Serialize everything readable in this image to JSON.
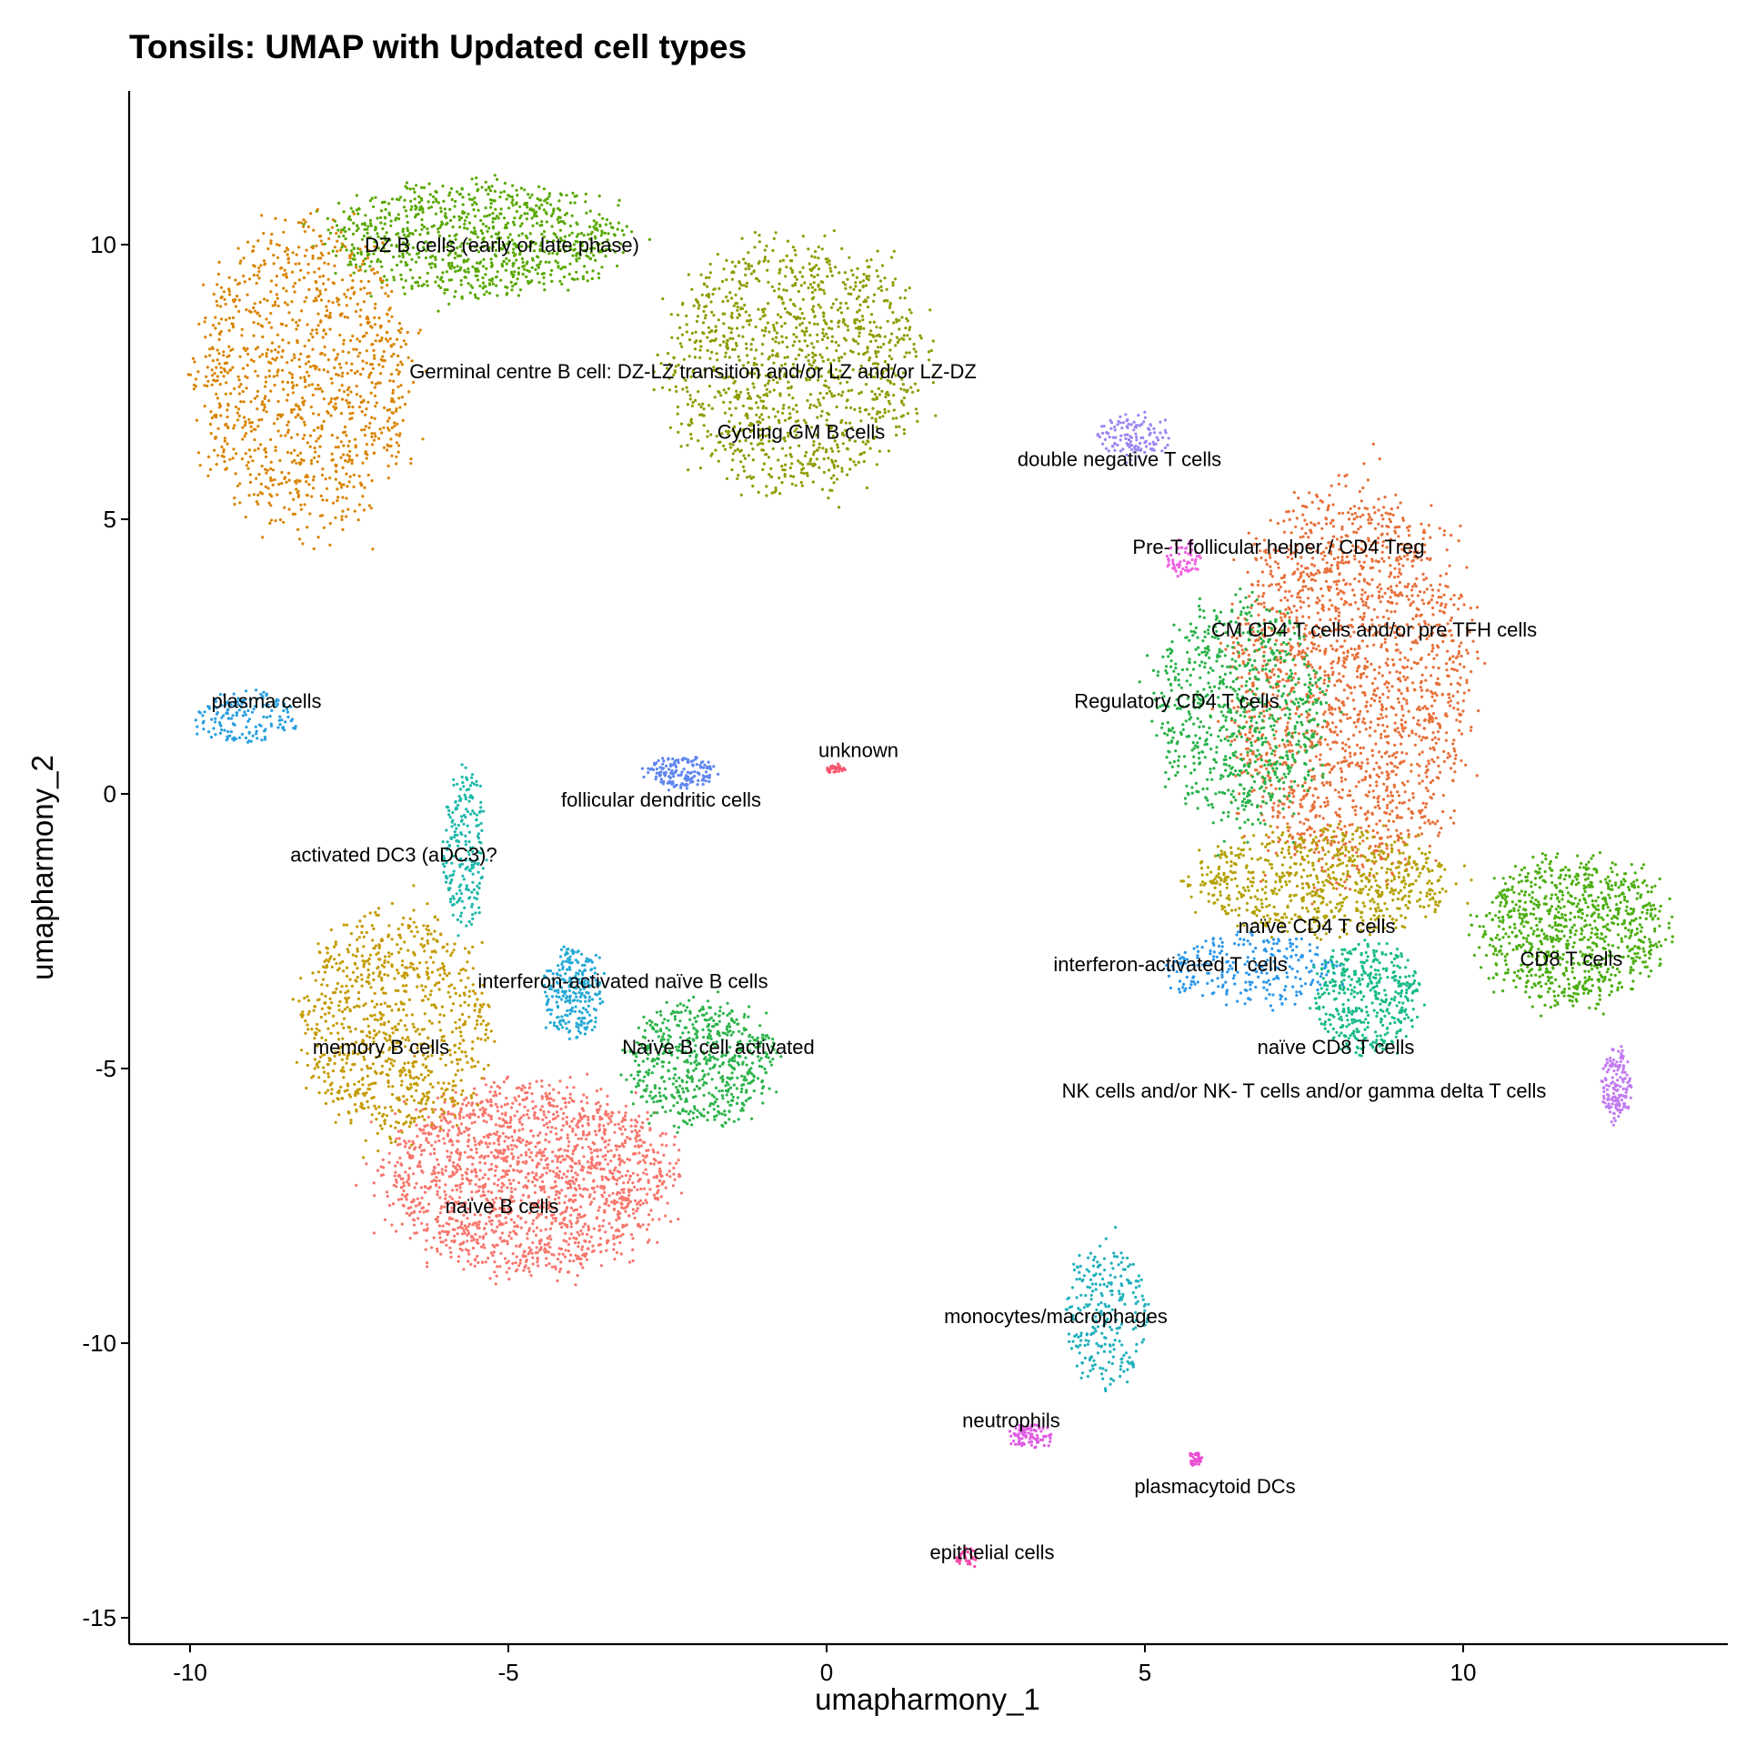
{
  "chart_data": {
    "type": "scatter",
    "title": "Tonsils: UMAP with Updated cell types",
    "xlabel": "umapharmony_1",
    "ylabel": "umapharmony_2",
    "xlim": [
      -11,
      14.3
    ],
    "ylim": [
      -15.4,
      12.8
    ],
    "x_ticks": [
      -10,
      -5,
      0,
      5,
      10
    ],
    "y_ticks": [
      10,
      5,
      0,
      -5,
      -10,
      -15
    ],
    "grid": false,
    "legend": "none",
    "clusters": [
      {
        "name": "naïve B cells",
        "color": "#F8766D",
        "cx": -4.7,
        "cy": -7.0,
        "rx": 2.4,
        "ry": 1.8,
        "n": 1800,
        "label_x": -5.1,
        "label_y": -7.5
      },
      {
        "name": "memory B cells",
        "color": "#C49A00",
        "cx": -6.8,
        "cy": -4.2,
        "rx": 1.6,
        "ry": 2.2,
        "n": 900,
        "label_x": -7.0,
        "label_y": -4.6
      },
      {
        "name": "Naïve B cell activated",
        "color": "#2CB34B",
        "cx": -2.0,
        "cy": -4.9,
        "rx": 1.2,
        "ry": 1.2,
        "n": 600,
        "label_x": -1.7,
        "label_y": -4.6
      },
      {
        "name": "interferon-activated naïve B cells",
        "color": "#24A9D6",
        "cx": -4.0,
        "cy": -3.6,
        "rx": 0.5,
        "ry": 0.9,
        "n": 250,
        "label_x": -3.2,
        "label_y": -3.4
      },
      {
        "name": "activated DC3 (aDC3)?",
        "color": "#1FB8AB",
        "cx": -5.7,
        "cy": -1.0,
        "rx": 0.35,
        "ry": 1.6,
        "n": 220,
        "label_x": -6.8,
        "label_y": -1.1
      },
      {
        "name": "plasma cells",
        "color": "#2A9FE0",
        "cx": -9.1,
        "cy": 1.4,
        "rx": 0.9,
        "ry": 0.5,
        "n": 160,
        "label_x": -8.8,
        "label_y": 1.7
      },
      {
        "name": "DZ B cells (early or late phase)",
        "color": "#58A800",
        "cx": -5.5,
        "cy": 10.1,
        "rx": 2.4,
        "ry": 1.1,
        "n": 900,
        "label_x": -5.1,
        "label_y": 10.0
      },
      {
        "name": "Germinal centre B cell: DZ-LZ transition and/or LZ and/or LZ-DZ",
        "color": "#D98400",
        "cx": -8.2,
        "cy": 7.6,
        "rx": 1.8,
        "ry": 2.9,
        "n": 1100,
        "label_x": -2.1,
        "label_y": 7.7
      },
      {
        "name": "Cycling GM B cells",
        "color": "#8E9C00",
        "cx": -0.5,
        "cy": 7.8,
        "rx": 2.2,
        "ry": 2.4,
        "n": 1200,
        "label_x": -0.4,
        "label_y": 6.6
      },
      {
        "name": "follicular dendritic cells",
        "color": "#5E86F0",
        "cx": -2.3,
        "cy": 0.4,
        "rx": 0.6,
        "ry": 0.3,
        "n": 160,
        "label_x": -2.6,
        "label_y": -0.1
      },
      {
        "name": "unknown",
        "color": "#F8566E",
        "cx": 0.15,
        "cy": 0.45,
        "rx": 0.15,
        "ry": 0.1,
        "n": 30,
        "label_x": 0.5,
        "label_y": 0.8
      },
      {
        "name": "double negative T cells",
        "color": "#9C84F2",
        "cx": 4.8,
        "cy": 6.5,
        "rx": 0.6,
        "ry": 0.45,
        "n": 120,
        "label_x": 4.6,
        "label_y": 6.1
      },
      {
        "name": "Pre-T follicular helper / CD4 Treg",
        "color": "#F062E0",
        "cx": 5.6,
        "cy": 4.3,
        "rx": 0.3,
        "ry": 0.35,
        "n": 70,
        "label_x": 7.1,
        "label_y": 4.5
      },
      {
        "name": "CM CD4 T cells  and/or pre TFH cells",
        "color": "#E7703A",
        "cx": 8.2,
        "cy": 2.0,
        "rx": 2.0,
        "ry": 3.8,
        "n": 2000,
        "label_x": 8.6,
        "label_y": 3.0
      },
      {
        "name": "Regulatory CD4 T cells",
        "color": "#28B247",
        "cx": 6.5,
        "cy": 1.5,
        "rx": 1.4,
        "ry": 2.2,
        "n": 800,
        "label_x": 5.5,
        "label_y": 1.7
      },
      {
        "name": "naïve CD4 T cells",
        "color": "#B3A100",
        "cx": 7.8,
        "cy": -1.6,
        "rx": 2.2,
        "ry": 1.0,
        "n": 700,
        "label_x": 7.7,
        "label_y": -2.4
      },
      {
        "name": "interferon-activated T cells",
        "color": "#2B97EA",
        "cx": 6.7,
        "cy": -3.2,
        "rx": 1.4,
        "ry": 0.7,
        "n": 260,
        "label_x": 5.4,
        "label_y": -3.1
      },
      {
        "name": "naïve CD8 T cells",
        "color": "#18BB89",
        "cx": 8.5,
        "cy": -3.7,
        "rx": 0.9,
        "ry": 1.1,
        "n": 420,
        "label_x": 8.0,
        "label_y": -4.6
      },
      {
        "name": "CD8 T cells",
        "color": "#4BAE10",
        "cx": 11.7,
        "cy": -2.5,
        "rx": 1.6,
        "ry": 1.4,
        "n": 900,
        "label_x": 11.7,
        "label_y": -3.0
      },
      {
        "name": "NK cells and/or NK- T cells and/or gamma delta T cells",
        "color": "#C27BF2",
        "cx": 12.4,
        "cy": -5.3,
        "rx": 0.25,
        "ry": 0.7,
        "n": 150,
        "label_x": 7.5,
        "label_y": -5.4
      },
      {
        "name": "monocytes/macrophages",
        "color": "#20B0BC",
        "cx": 4.4,
        "cy": -9.5,
        "rx": 0.7,
        "ry": 1.4,
        "n": 260,
        "label_x": 3.6,
        "label_y": -9.5
      },
      {
        "name": "neutrophils",
        "color": "#E05CE3",
        "cx": 3.2,
        "cy": -11.7,
        "rx": 0.35,
        "ry": 0.25,
        "n": 90,
        "label_x": 2.9,
        "label_y": -11.4
      },
      {
        "name": "plasmacytoid DCs",
        "color": "#EB4FD0",
        "cx": 5.8,
        "cy": -12.1,
        "rx": 0.12,
        "ry": 0.15,
        "n": 35,
        "label_x": 6.1,
        "label_y": -12.6
      },
      {
        "name": "epithelial cells",
        "color": "#F34AA8",
        "cx": 2.2,
        "cy": -13.9,
        "rx": 0.2,
        "ry": 0.2,
        "n": 35,
        "label_x": 2.6,
        "label_y": -13.8
      }
    ]
  }
}
